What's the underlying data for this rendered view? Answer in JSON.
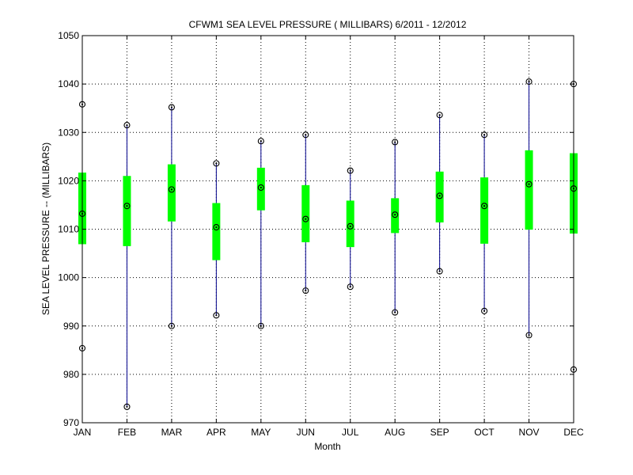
{
  "chart_data": {
    "type": "box",
    "title": "CFWM1  SEA LEVEL PRESSURE ( MILLIBARS) 6/2011 - 12/2012",
    "xlabel": "Month",
    "ylabel": "SEA LEVEL PRESSURE -- (MILLIBARS)",
    "ylim": [
      970,
      1050
    ],
    "yticks": [
      970,
      980,
      990,
      1000,
      1010,
      1020,
      1030,
      1040,
      1050
    ],
    "grid": true,
    "categories": [
      "JAN",
      "FEB",
      "MAR",
      "APR",
      "MAY",
      "JUN",
      "JUL",
      "AUG",
      "SEP",
      "OCT",
      "NOV",
      "DEC"
    ],
    "series": [
      {
        "stat": "max",
        "values": [
          1035.8,
          1031.5,
          1035.2,
          1023.6,
          1028.2,
          1029.5,
          1022.1,
          1028.0,
          1033.6,
          1029.5,
          1040.5,
          1040.0
        ]
      },
      {
        "stat": "q_high",
        "values": [
          1021.7,
          1021.0,
          1023.4,
          1015.4,
          1022.7,
          1019.1,
          1015.9,
          1016.4,
          1021.9,
          1020.7,
          1026.3,
          1025.7
        ]
      },
      {
        "stat": "median",
        "values": [
          1013.2,
          1014.8,
          1018.2,
          1010.4,
          1018.6,
          1012.1,
          1010.6,
          1013.0,
          1016.9,
          1014.8,
          1019.3,
          1018.4
        ]
      },
      {
        "stat": "q_low",
        "values": [
          1006.9,
          1006.5,
          1011.6,
          1003.6,
          1013.9,
          1007.3,
          1006.3,
          1009.2,
          1011.4,
          1007.0,
          1009.9,
          1009.1
        ]
      },
      {
        "stat": "min",
        "values": [
          985.4,
          973.3,
          990.0,
          992.2,
          990.0,
          997.3,
          998.1,
          992.8,
          1001.3,
          993.1,
          988.1,
          981.0
        ]
      }
    ],
    "colors": {
      "whisker": "#00008b",
      "box": "#00ff00",
      "grid": "#000000"
    }
  }
}
